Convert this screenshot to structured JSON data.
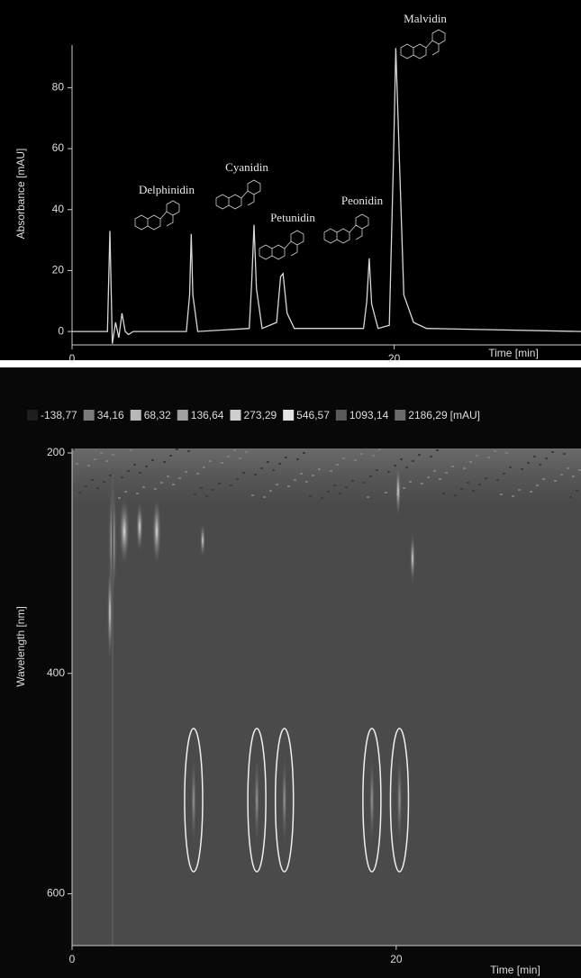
{
  "chart_data": [
    {
      "type": "line",
      "ylabel": "Absorbance [mAU]",
      "xlabel": "Time [min]",
      "x": [
        0,
        2.2,
        2.35,
        2.5,
        2.7,
        2.9,
        3.1,
        3.3,
        3.5,
        3.8,
        7.1,
        7.3,
        7.4,
        7.5,
        7.8,
        11.0,
        11.15,
        11.3,
        11.45,
        11.8,
        12.7,
        12.95,
        13.1,
        13.35,
        13.8,
        18.1,
        18.3,
        18.45,
        18.6,
        19.0,
        19.7,
        19.95,
        20.1,
        20.3,
        20.6,
        21.2,
        22.0,
        31.6
      ],
      "series": [
        {
          "name": null,
          "color": "#d8d8d8",
          "values": [
            0,
            0,
            33,
            -4,
            3,
            -2,
            6,
            0,
            -1,
            0,
            0,
            12,
            32,
            12,
            0,
            1,
            16,
            35,
            14,
            1,
            3,
            18,
            19,
            6,
            1,
            1,
            10,
            24,
            9,
            1,
            2,
            55,
            93,
            60,
            12,
            3,
            1,
            0
          ]
        }
      ],
      "xlim": [
        0,
        31.6
      ],
      "ylim": [
        -4.4,
        94
      ],
      "xticks": [
        0,
        20
      ],
      "yticks": [
        0,
        20,
        40,
        60,
        80
      ],
      "annotations": [
        "Delphinidin",
        "Cyanidin",
        "Petunidin",
        "Peonidin",
        "Malvidin"
      ]
    },
    {
      "type": "heatmap",
      "ylabel": "Wavelength [nm]",
      "xlabel": "Time [min]",
      "xlim": [
        0,
        31.4
      ],
      "ylim": [
        647,
        200
      ],
      "xticks": [
        0,
        20
      ],
      "yticks": [
        200,
        400,
        600
      ],
      "color_scale": [
        {
          "value": -138.77,
          "label": "-138,77",
          "color": "#1e1e1e"
        },
        {
          "value": 34.16,
          "label": "34,16",
          "color": "#7a7a7a"
        },
        {
          "value": 68.32,
          "label": "68,32",
          "color": "#b8b8b8"
        },
        {
          "value": 136.64,
          "label": "136,64",
          "color": "#a0a0a0"
        },
        {
          "value": 273.29,
          "label": "273,29",
          "color": "#cfcfcf"
        },
        {
          "value": 546.57,
          "label": "546,57",
          "color": "#e4e4e4"
        },
        {
          "value": 1093.14,
          "label": "1093,14",
          "color": "#5a5a5a"
        },
        {
          "value": 2186.29,
          "label": "2186,29",
          "color": "#6a6a6a"
        }
      ],
      "unit": "[mAU]",
      "highlights": [
        7.5,
        11.4,
        13.1,
        18.5,
        20.2
      ],
      "highlight_range": [
        450,
        580
      ]
    }
  ]
}
